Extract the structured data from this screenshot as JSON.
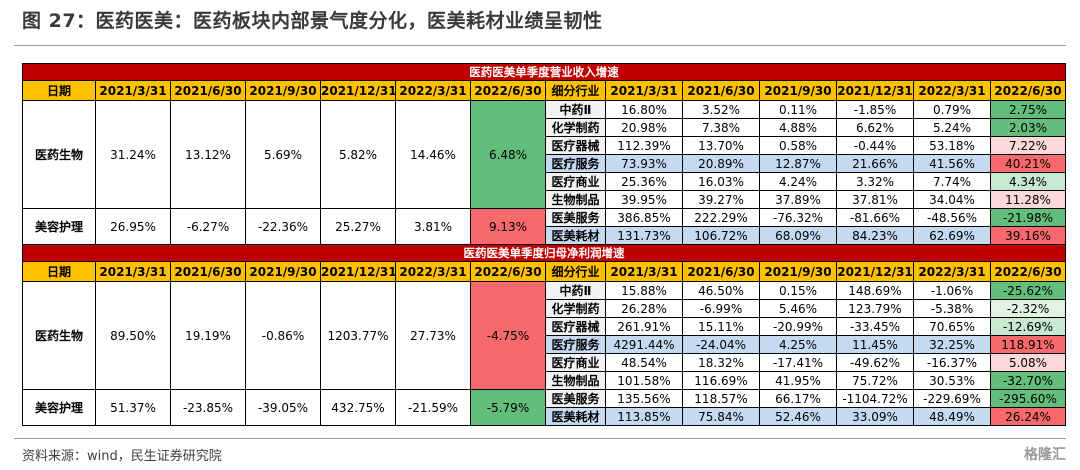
{
  "header": {
    "title": "图 27：医药医美：医药板块内部景气度分化，医美耗材业绩呈韧性"
  },
  "tables": [
    {
      "caption": "医药医美单季度营业收入增速",
      "date_header": "日期",
      "dates": [
        "2021/3/31",
        "2021/6/30",
        "2021/9/30",
        "2021/12/31",
        "2022/3/31",
        "2022/6/30"
      ],
      "segment_header": "细分行业",
      "segment_dates": [
        "2021/3/31",
        "2021/6/30",
        "2021/9/30",
        "2021/12/31",
        "2022/3/31",
        "2022/6/30"
      ],
      "sectors": [
        {
          "name": "医药生物",
          "values": [
            "31.24%",
            "13.12%",
            "5.69%",
            "5.82%",
            "14.46%",
            "6.48%"
          ],
          "fill": "#63be7b"
        },
        {
          "name": "美容护理",
          "values": [
            "26.95%",
            "-6.27%",
            "-22.36%",
            "25.27%",
            "3.81%",
            "9.13%"
          ],
          "fill": "#f8696b"
        }
      ],
      "segments": [
        {
          "name": "中药Ⅱ",
          "values": [
            "16.80%",
            "3.52%",
            "0.11%",
            "-1.85%",
            "0.79%",
            "2.75%"
          ],
          "fill": "#63be7b"
        },
        {
          "name": "化学制药",
          "values": [
            "20.98%",
            "7.38%",
            "4.88%",
            "6.62%",
            "5.24%",
            "2.03%"
          ],
          "fill": "#63be7b"
        },
        {
          "name": "医疗器械",
          "values": [
            "112.39%",
            "13.70%",
            "0.58%",
            "-0.44%",
            "53.18%",
            "7.22%"
          ],
          "fill": "#fcd9d9"
        },
        {
          "name": "医疗服务",
          "values": [
            "73.93%",
            "20.89%",
            "12.87%",
            "21.66%",
            "41.56%",
            "40.21%"
          ],
          "fill": "#f8696b",
          "highlight": "#c5d9f1"
        },
        {
          "name": "医疗商业",
          "values": [
            "25.36%",
            "16.03%",
            "4.24%",
            "3.32%",
            "7.74%",
            "4.34%"
          ],
          "fill": "#c6e9cf"
        },
        {
          "name": "生物制品",
          "values": [
            "39.95%",
            "39.27%",
            "37.89%",
            "37.81%",
            "34.04%",
            "11.28%"
          ],
          "fill": "#fcd9d9"
        },
        {
          "name": "医美服务",
          "values": [
            "386.85%",
            "222.29%",
            "-76.32%",
            "-81.66%",
            "-48.56%",
            "-21.98%"
          ],
          "fill": "#63be7b"
        },
        {
          "name": "医美耗材",
          "values": [
            "131.73%",
            "106.72%",
            "68.09%",
            "84.23%",
            "62.69%",
            "39.16%"
          ],
          "fill": "#f8696b",
          "highlight": "#c5d9f1"
        }
      ]
    },
    {
      "caption": "医药医美单季度归母净利润增速",
      "date_header": "日期",
      "dates": [
        "2021/3/31",
        "2021/6/30",
        "2021/9/30",
        "2021/12/31",
        "2022/3/31",
        "2022/6/30"
      ],
      "segment_header": "细分行业",
      "segment_dates": [
        "2021/3/31",
        "2021/6/30",
        "2021/9/30",
        "2021/12/31",
        "2022/3/31",
        "2022/6/30"
      ],
      "sectors": [
        {
          "name": "医药生物",
          "values": [
            "89.50%",
            "19.19%",
            "-0.86%",
            "1203.77%",
            "27.73%",
            "-4.75%"
          ],
          "fill": "#f8696b"
        },
        {
          "name": "美容护理",
          "values": [
            "51.37%",
            "-23.85%",
            "-39.05%",
            "432.75%",
            "-21.59%",
            "-5.79%"
          ],
          "fill": "#63be7b"
        }
      ],
      "segments": [
        {
          "name": "中药Ⅱ",
          "values": [
            "15.88%",
            "46.50%",
            "0.15%",
            "148.69%",
            "-1.06%",
            "-25.62%"
          ],
          "fill": "#63be7b"
        },
        {
          "name": "化学制药",
          "values": [
            "26.28%",
            "-6.99%",
            "5.46%",
            "123.79%",
            "-5.38%",
            "-2.32%"
          ],
          "fill": "#e2f2e5"
        },
        {
          "name": "医疗器械",
          "values": [
            "261.91%",
            "15.11%",
            "-20.99%",
            "-33.45%",
            "70.65%",
            "-12.69%"
          ],
          "fill": "#c6e9cf"
        },
        {
          "name": "医疗服务",
          "values": [
            "4291.44%",
            "-24.04%",
            "4.25%",
            "11.45%",
            "32.25%",
            "118.91%"
          ],
          "fill": "#f8696b",
          "highlight": "#c5d9f1"
        },
        {
          "name": "医疗商业",
          "values": [
            "48.54%",
            "18.32%",
            "-17.41%",
            "-49.62%",
            "-16.37%",
            "5.08%"
          ],
          "fill": "#fcd9d9"
        },
        {
          "name": "生物制品",
          "values": [
            "101.58%",
            "116.69%",
            "41.95%",
            "75.72%",
            "30.53%",
            "-32.70%"
          ],
          "fill": "#63be7b"
        },
        {
          "name": "医美服务",
          "values": [
            "135.56%",
            "118.57%",
            "66.17%",
            "-1104.72%",
            "-229.69%",
            "-295.60%"
          ],
          "fill": "#63be7b"
        },
        {
          "name": "医美耗材",
          "values": [
            "113.85%",
            "75.84%",
            "52.46%",
            "33.09%",
            "48.49%",
            "26.24%"
          ],
          "fill": "#f8696b",
          "highlight": "#c5d9f1"
        }
      ]
    }
  ],
  "footer": {
    "source": "资料来源：wind，民生证券研究院",
    "watermark": "格隆汇"
  }
}
